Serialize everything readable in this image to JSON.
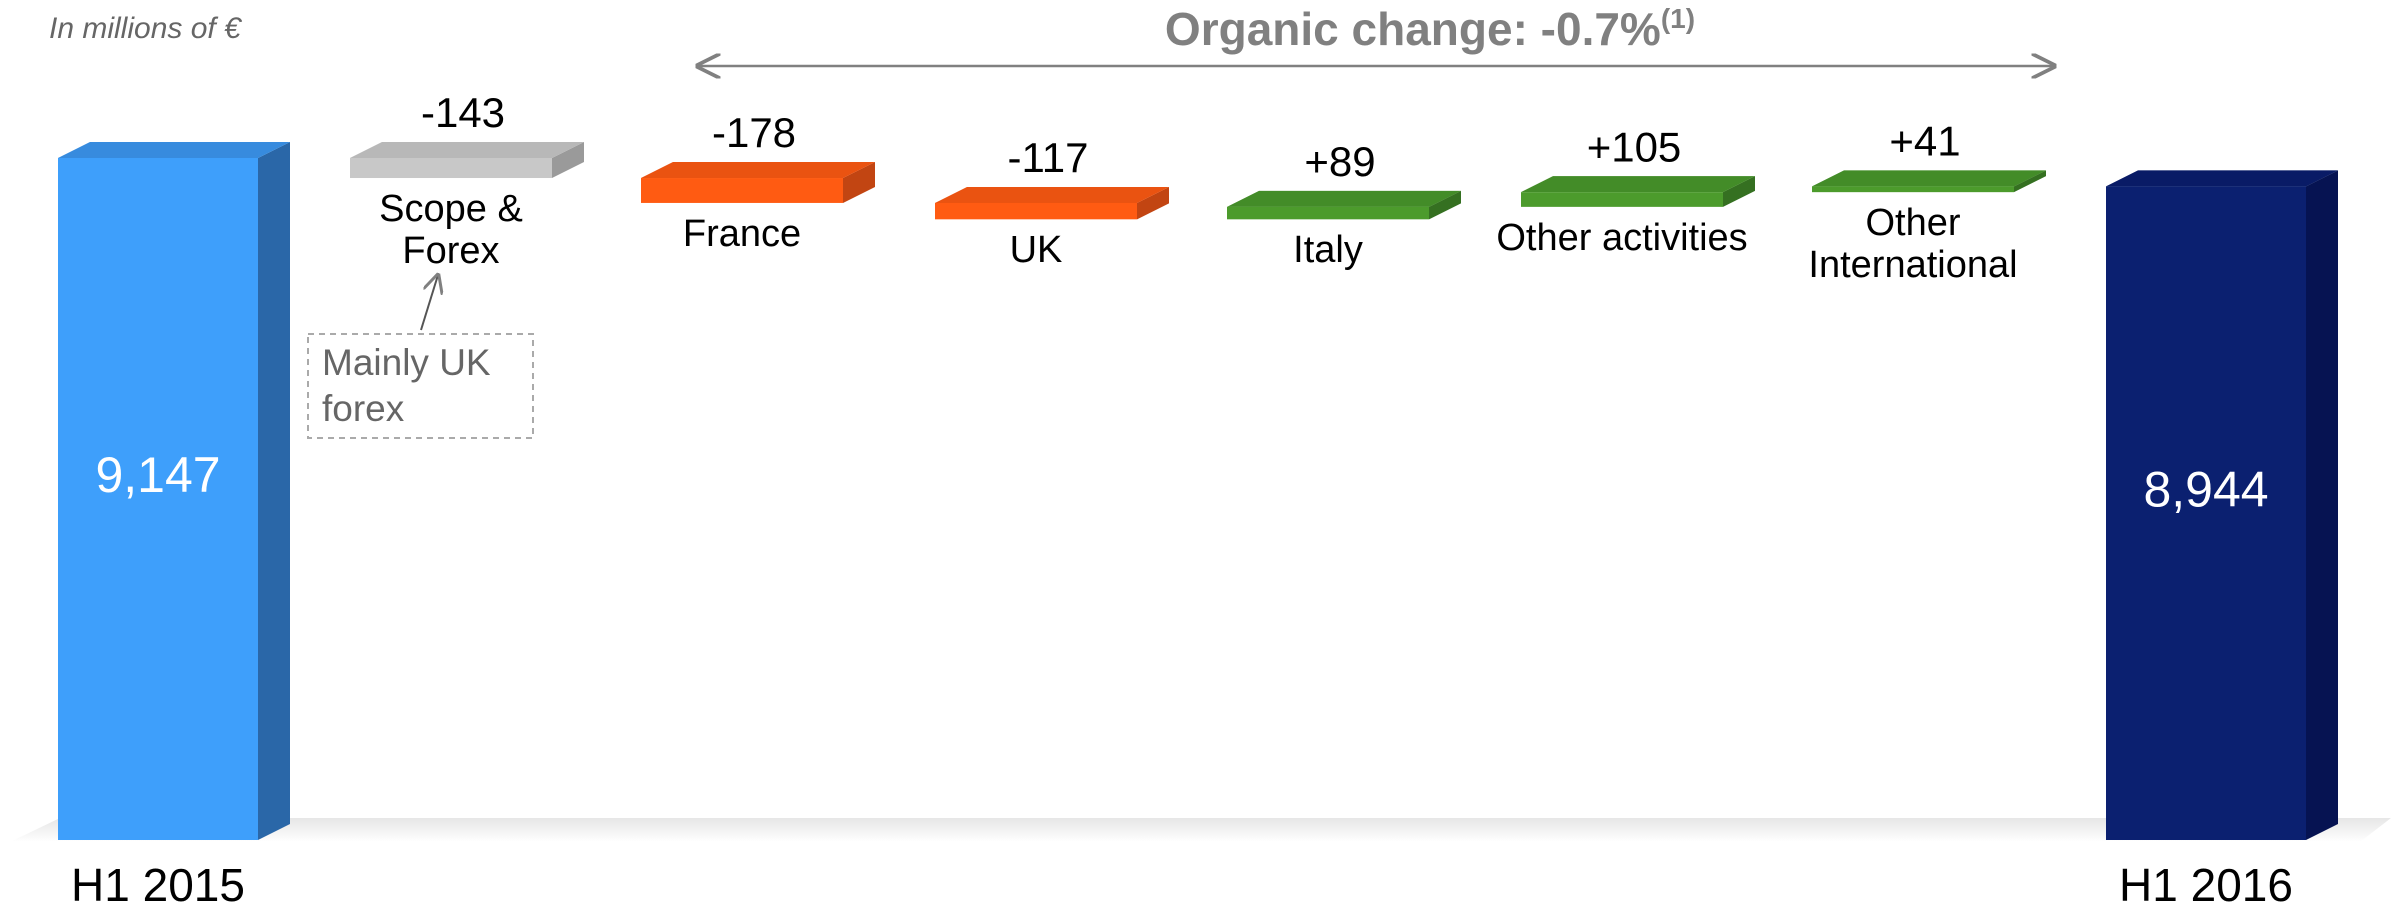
{
  "chart_data": {
    "type": "waterfall",
    "unit_note": "In millions of €",
    "title": "Organic change: -0.7%",
    "title_note": "(1)",
    "annotation": "Mainly UK forex",
    "categories": [
      "H1 2015",
      "Scope & Forex",
      "France",
      "UK",
      "Italy",
      "Other activities",
      "Other International",
      "H1 2016"
    ],
    "values": [
      9147,
      -143,
      -178,
      -117,
      89,
      105,
      41,
      8944
    ],
    "value_labels": [
      "9,147",
      "-143",
      "-178",
      "-117",
      "+89",
      "+105",
      "+41",
      "8,944"
    ],
    "totals": [
      true,
      false,
      false,
      false,
      false,
      false,
      false,
      true
    ],
    "colors": [
      "#3e9ffb",
      "#c8c8c8",
      "#ff5b12",
      "#ff5b12",
      "#4c9b2c",
      "#4c9b2c",
      "#4c9b2c",
      "#0b2070"
    ],
    "side_colors": [
      "#2a67a8",
      "#9a9a9a",
      "#c24512",
      "#c24512",
      "#357021",
      "#357021",
      "#357021",
      "#061352"
    ]
  }
}
